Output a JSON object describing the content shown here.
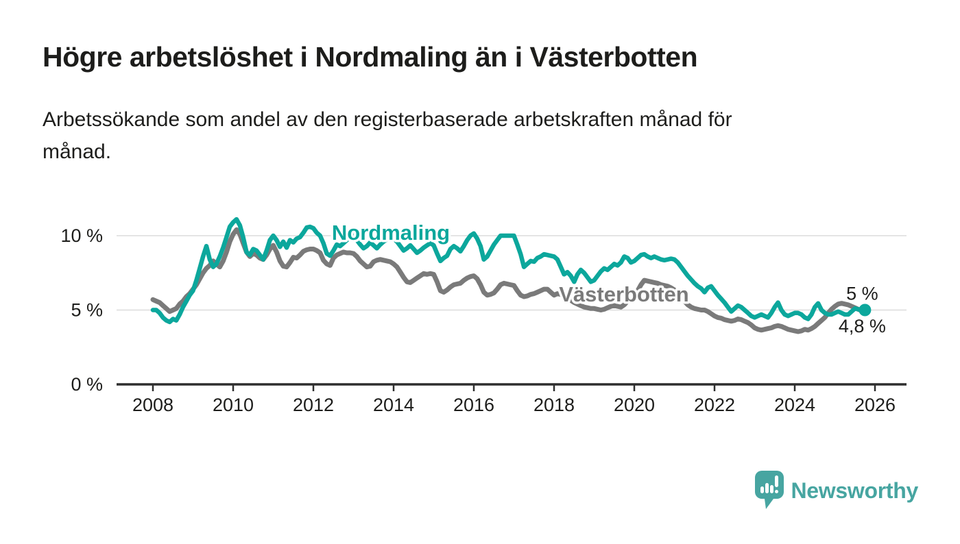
{
  "header": {
    "title": "Högre arbetslöshet i Nordmaling än i Västerbotten",
    "subtitle_lines": [
      "Arbetssökande som andel av den registerbaserade arbetskraften månad för",
      "månad."
    ]
  },
  "colors": {
    "text": "#1D1D1B",
    "grid": "#DBDBDB",
    "axis": "#2E2E2E",
    "teal": "#0CA79C",
    "gray": "#7A7A7A",
    "logo": "#47A5A1"
  },
  "chart_data": {
    "type": "line",
    "unit": "%",
    "frequency": "monthly",
    "x_start": "2008-01",
    "x_end": "2025-10",
    "grid": "horizontal",
    "legend_position": "inline-labels",
    "x_axis": {
      "ticks": [
        2008,
        2010,
        2012,
        2014,
        2016,
        2018,
        2020,
        2022,
        2024,
        2026
      ]
    },
    "y_axis": {
      "range": [
        0,
        11.8
      ],
      "ticks": [
        {
          "value": 0,
          "label": "0 %"
        },
        {
          "value": 5,
          "label": "5 %"
        },
        {
          "value": 10,
          "label": "10 %"
        }
      ]
    },
    "series": [
      {
        "id": "nordmaling",
        "name": "Nordmaling",
        "color": "#0CA79C",
        "end_label": "5 %",
        "end_value": 5.0,
        "end_dot": true,
        "values": [
          5.0,
          5.0,
          4.8,
          4.5,
          4.3,
          4.2,
          4.4,
          4.3,
          4.7,
          5.2,
          5.6,
          6.0,
          6.3,
          7.0,
          7.8,
          8.6,
          9.3,
          8.4,
          7.9,
          8.1,
          8.6,
          9.2,
          9.9,
          10.6,
          10.9,
          11.1,
          10.7,
          9.9,
          8.9,
          8.7,
          9.1,
          9.0,
          8.7,
          8.4,
          9.0,
          9.7,
          10.0,
          9.7,
          9.25,
          9.6,
          9.2,
          9.7,
          9.55,
          9.8,
          9.9,
          10.2,
          10.55,
          10.6,
          10.5,
          10.2,
          10.0,
          9.5,
          8.8,
          8.65,
          9.0,
          9.4,
          9.3,
          9.5,
          9.7,
          9.9,
          10.0,
          9.7,
          9.4,
          9.15,
          9.3,
          9.55,
          9.35,
          9.15,
          9.4,
          9.6,
          9.75,
          9.9,
          9.8,
          9.6,
          9.3,
          9.0,
          9.15,
          9.35,
          9.1,
          8.85,
          9.0,
          9.2,
          9.35,
          9.5,
          9.35,
          8.8,
          8.3,
          8.5,
          8.65,
          9.1,
          9.3,
          9.15,
          8.95,
          9.3,
          9.7,
          10.0,
          10.15,
          9.8,
          9.3,
          8.4,
          8.6,
          9.0,
          9.4,
          9.7,
          10.0,
          10.0,
          10.0,
          10.0,
          10.0,
          9.4,
          8.75,
          7.9,
          8.1,
          8.3,
          8.25,
          8.5,
          8.6,
          8.75,
          8.7,
          8.65,
          8.6,
          8.4,
          7.9,
          7.4,
          7.55,
          7.3,
          6.9,
          7.4,
          7.7,
          7.5,
          7.2,
          6.9,
          7.0,
          7.3,
          7.6,
          7.8,
          7.7,
          7.9,
          8.1,
          8.0,
          8.2,
          8.6,
          8.5,
          8.2,
          8.3,
          8.5,
          8.7,
          8.75,
          8.6,
          8.5,
          8.6,
          8.5,
          8.4,
          8.35,
          8.4,
          8.45,
          8.4,
          8.2,
          7.9,
          7.6,
          7.3,
          7.05,
          6.8,
          6.6,
          6.45,
          6.2,
          6.5,
          6.6,
          6.3,
          6.0,
          5.75,
          5.5,
          5.2,
          4.9,
          5.1,
          5.3,
          5.2,
          5.0,
          4.8,
          4.6,
          4.5,
          4.6,
          4.7,
          4.6,
          4.5,
          4.8,
          5.2,
          5.5,
          5.0,
          4.7,
          4.6,
          4.7,
          4.8,
          4.8,
          4.7,
          4.5,
          4.4,
          4.7,
          5.2,
          5.45,
          5.0,
          4.8,
          4.7,
          4.7,
          4.8,
          4.9,
          4.8,
          4.7,
          4.7,
          4.9,
          5.1,
          5.05,
          5.0,
          5.0
        ]
      },
      {
        "id": "vasterbotten",
        "name": "Västerbotten",
        "color": "#7A7A7A",
        "end_label": "4,8 %",
        "end_value": 4.8,
        "end_dot": false,
        "values": [
          5.7,
          5.6,
          5.5,
          5.3,
          5.1,
          4.9,
          5.0,
          5.1,
          5.4,
          5.6,
          5.9,
          6.1,
          6.4,
          6.7,
          7.1,
          7.5,
          7.8,
          8.0,
          8.3,
          8.1,
          7.9,
          8.3,
          8.9,
          9.6,
          10.1,
          10.4,
          10.1,
          9.5,
          8.9,
          8.6,
          8.8,
          8.7,
          8.5,
          8.4,
          8.7,
          9.1,
          9.35,
          8.9,
          8.3,
          7.95,
          7.9,
          8.2,
          8.55,
          8.5,
          8.7,
          8.95,
          9.05,
          9.1,
          9.1,
          9.0,
          8.85,
          8.35,
          8.1,
          8.0,
          8.5,
          8.7,
          8.8,
          8.9,
          8.85,
          8.85,
          8.8,
          8.6,
          8.3,
          8.1,
          7.9,
          7.95,
          8.25,
          8.35,
          8.4,
          8.35,
          8.3,
          8.25,
          8.1,
          7.9,
          7.55,
          7.2,
          6.9,
          6.85,
          7.0,
          7.15,
          7.3,
          7.45,
          7.4,
          7.45,
          7.4,
          6.9,
          6.3,
          6.2,
          6.35,
          6.55,
          6.7,
          6.75,
          6.8,
          7.0,
          7.15,
          7.25,
          7.3,
          7.1,
          6.7,
          6.2,
          6.0,
          6.05,
          6.15,
          6.4,
          6.7,
          6.8,
          6.75,
          6.7,
          6.65,
          6.3,
          6.0,
          5.9,
          5.95,
          6.05,
          6.1,
          6.2,
          6.3,
          6.4,
          6.4,
          6.2,
          6.0,
          6.1,
          6.05,
          5.9,
          5.8,
          5.65,
          5.5,
          5.4,
          5.3,
          5.2,
          5.15,
          5.1,
          5.1,
          5.05,
          5.0,
          5.05,
          5.15,
          5.25,
          5.3,
          5.25,
          5.2,
          5.35,
          5.6,
          5.8,
          6.0,
          6.3,
          6.7,
          7.0,
          6.95,
          6.9,
          6.85,
          6.8,
          6.7,
          6.65,
          6.6,
          6.5,
          6.35,
          6.1,
          5.85,
          5.6,
          5.35,
          5.2,
          5.1,
          5.05,
          5.0,
          5.0,
          4.9,
          4.75,
          4.6,
          4.5,
          4.45,
          4.35,
          4.3,
          4.25,
          4.3,
          4.4,
          4.35,
          4.25,
          4.15,
          4.0,
          3.8,
          3.7,
          3.65,
          3.7,
          3.75,
          3.8,
          3.9,
          3.95,
          3.9,
          3.8,
          3.7,
          3.65,
          3.6,
          3.55,
          3.6,
          3.7,
          3.65,
          3.75,
          3.9,
          4.1,
          4.3,
          4.5,
          4.8,
          5.05,
          5.25,
          5.4,
          5.45,
          5.4,
          5.35,
          5.25,
          5.15,
          5.05,
          4.95,
          4.8
        ]
      }
    ]
  },
  "branding": {
    "logo_text": "Newsworthy",
    "logo_icon": "bar-chart-speech-bubble-icon"
  }
}
